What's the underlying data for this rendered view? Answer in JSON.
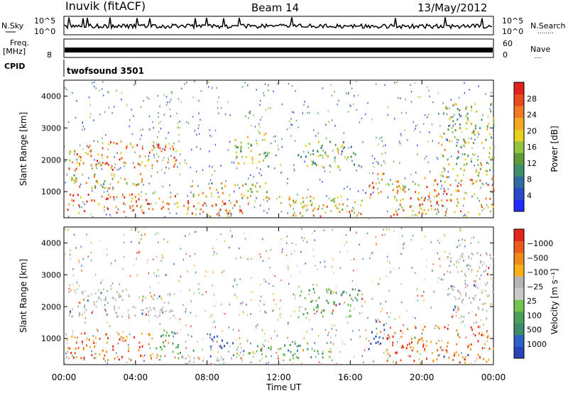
{
  "header": {
    "station": "Inuvik (fitACF)",
    "beam": "Beam 14",
    "date": "13/May/2012"
  },
  "strips": {
    "nsky_label": "N.Sky",
    "nsearch_label": "N.Search",
    "nsearch_dots": "........",
    "freq_label": "Freq.",
    "freq_unit": "[MHz]",
    "nave_label": "Nave",
    "nave_dots": "....",
    "cpid_label": "CPID",
    "cpid_value": "twofsound 3501",
    "nsky_ticks": [
      "10^5",
      "10^0"
    ],
    "nsearch_ticks": [
      "10^5",
      "10^0"
    ],
    "freq_ticks": [
      "8"
    ],
    "nave_ticks": [
      "60",
      "0"
    ]
  },
  "chart_data": [
    {
      "type": "heatmap",
      "panel": "power",
      "ylabel": "Slant Range [km]",
      "yticks": [
        "1000",
        "2000",
        "3000",
        "4000"
      ],
      "ylim": [
        180,
        4500
      ],
      "xlim": [
        0,
        24
      ],
      "colorbar": {
        "label": "Power [dB]",
        "ticks": [
          "4",
          "8",
          "12",
          "16",
          "20",
          "24",
          "28"
        ],
        "colors": [
          "#1f2bff",
          "#2a49c9",
          "#2f6aa3",
          "#3f8f6a",
          "#5e9c3a",
          "#93c43d",
          "#e6d21f",
          "#f5a623",
          "#f07a22",
          "#ea4b1d",
          "#e2221d"
        ]
      },
      "regions": [
        {
          "t0": 0.2,
          "t1": 6.3,
          "r0": 1700,
          "r1": 2600,
          "level": 0.75
        },
        {
          "t0": 0.2,
          "t1": 4.5,
          "r0": 1100,
          "r1": 1600,
          "level": 0.6
        },
        {
          "t0": 0.0,
          "t1": 6.5,
          "r0": 350,
          "r1": 950,
          "level": 0.85
        },
        {
          "t0": 6.5,
          "t1": 10.5,
          "r0": 250,
          "r1": 800,
          "level": 0.8
        },
        {
          "t0": 7.0,
          "t1": 11.5,
          "r0": 800,
          "r1": 1300,
          "level": 0.55
        },
        {
          "t0": 9.5,
          "t1": 11.5,
          "r0": 1800,
          "r1": 2900,
          "level": 0.5
        },
        {
          "t0": 12.0,
          "t1": 17.0,
          "r0": 250,
          "r1": 900,
          "level": 0.65
        },
        {
          "t0": 13.0,
          "t1": 16.5,
          "r0": 1800,
          "r1": 2600,
          "level": 0.45
        },
        {
          "t0": 17.0,
          "t1": 18.0,
          "r0": 800,
          "r1": 1600,
          "level": 0.85
        },
        {
          "t0": 18.0,
          "t1": 24.0,
          "r0": 250,
          "r1": 1500,
          "level": 0.7
        },
        {
          "t0": 21.0,
          "t1": 24.0,
          "r0": 1500,
          "r1": 3800,
          "level": 0.5
        }
      ]
    },
    {
      "type": "heatmap",
      "panel": "velocity",
      "ylabel": "Slant Range [km]",
      "yticks": [
        "1000",
        "2000",
        "3000",
        "4000"
      ],
      "ylim": [
        180,
        4500
      ],
      "xlim": [
        0,
        24
      ],
      "xticks": [
        "00:00",
        "04:00",
        "08:00",
        "12:00",
        "16:00",
        "20:00",
        "00:00"
      ],
      "xlabel": "Time UT",
      "colorbar": {
        "label": "Velocity [m s⁻¹]",
        "ticks": [
          "1000",
          "500",
          "100",
          "25",
          "−25",
          "−100",
          "−500",
          "−1000"
        ],
        "colors": [
          "#2a44b8",
          "#2d61c7",
          "#3b8f68",
          "#4aa058",
          "#74c24f",
          "#c9c9c9",
          "#b5b5b5",
          "#f7b21a",
          "#f08a1b",
          "#ea5c1e",
          "#e4251d"
        ]
      },
      "regions": [
        {
          "t0": 0.2,
          "t1": 6.3,
          "r0": 1700,
          "r1": 2600,
          "class": "low"
        },
        {
          "t0": 0.0,
          "t1": 5.0,
          "r0": 350,
          "r1": 1200,
          "class": "away"
        },
        {
          "t0": 5.0,
          "t1": 6.5,
          "r0": 400,
          "r1": 1300,
          "class": "toward-mid"
        },
        {
          "t0": 6.5,
          "t1": 10.0,
          "r0": 250,
          "r1": 800,
          "class": "low"
        },
        {
          "t0": 8.0,
          "t1": 9.5,
          "r0": 700,
          "r1": 1200,
          "class": "toward-high"
        },
        {
          "t0": 10.0,
          "t1": 15.0,
          "r0": 350,
          "r1": 900,
          "class": "toward-mid"
        },
        {
          "t0": 13.0,
          "t1": 16.5,
          "r0": 1700,
          "r1": 2600,
          "class": "toward-mid"
        },
        {
          "t0": 17.0,
          "t1": 18.0,
          "r0": 700,
          "r1": 1600,
          "class": "toward-high"
        },
        {
          "t0": 18.0,
          "t1": 24.0,
          "r0": 250,
          "r1": 1400,
          "class": "away"
        },
        {
          "t0": 21.5,
          "t1": 24.0,
          "r0": 1500,
          "r1": 3800,
          "class": "low"
        }
      ]
    }
  ]
}
